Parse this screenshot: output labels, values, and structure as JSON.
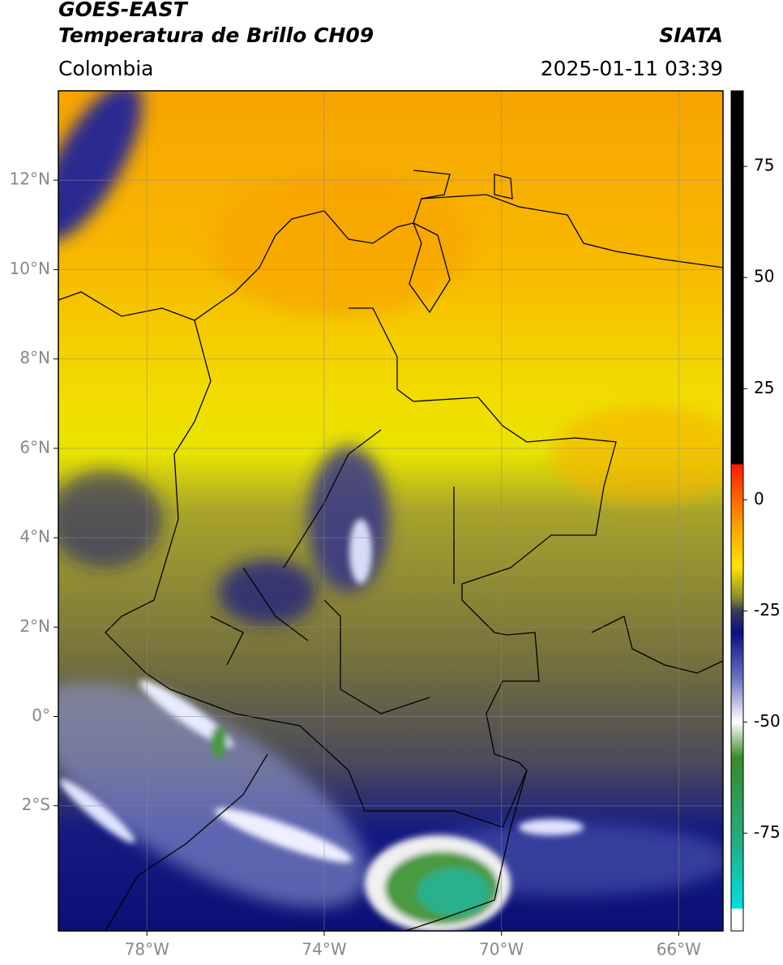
{
  "header": {
    "satellite": "GOES-EAST",
    "product": "Temperatura de Brillo CH09",
    "region": "Colombia",
    "source": "SIATA",
    "timestamp": "2025-01-11 03:39"
  },
  "map": {
    "xlim": [
      -80,
      -65
    ],
    "ylim": [
      -4.8,
      14
    ],
    "grid": true,
    "xticks": [
      {
        "value": -78,
        "label": "78°W"
      },
      {
        "value": -74,
        "label": "74°W"
      },
      {
        "value": -70,
        "label": "70°W"
      },
      {
        "value": -66,
        "label": "66°W"
      }
    ],
    "yticks": [
      {
        "value": 12,
        "label": "12°N"
      },
      {
        "value": 10,
        "label": "10°N"
      },
      {
        "value": 8,
        "label": "8°N"
      },
      {
        "value": 6,
        "label": "6°N"
      },
      {
        "value": 4,
        "label": "4°N"
      },
      {
        "value": 2,
        "label": "2°N"
      },
      {
        "value": 0,
        "label": "0°"
      },
      {
        "value": -2,
        "label": "2°S"
      }
    ]
  },
  "colorbar": {
    "lim": [
      -97,
      92
    ],
    "ticks": [
      75,
      50,
      25,
      0,
      -25,
      -50,
      -75
    ],
    "stops": [
      [
        92,
        "#000000"
      ],
      [
        8,
        "#000000"
      ],
      [
        8,
        "#ff1a00"
      ],
      [
        -5,
        "#ff9900"
      ],
      [
        -15,
        "#ffe600"
      ],
      [
        -22,
        "#8c8c2a"
      ],
      [
        -25,
        "#3a3a5a"
      ],
      [
        -30,
        "#0a1080"
      ],
      [
        -40,
        "#6a70c0"
      ],
      [
        -50,
        "#ffffff"
      ],
      [
        -58,
        "#3a8a2a"
      ],
      [
        -78,
        "#20b08a"
      ],
      [
        -92,
        "#00e0e0"
      ],
      [
        -92,
        "#ffffff"
      ],
      [
        -97,
        "#ffffff"
      ]
    ]
  }
}
